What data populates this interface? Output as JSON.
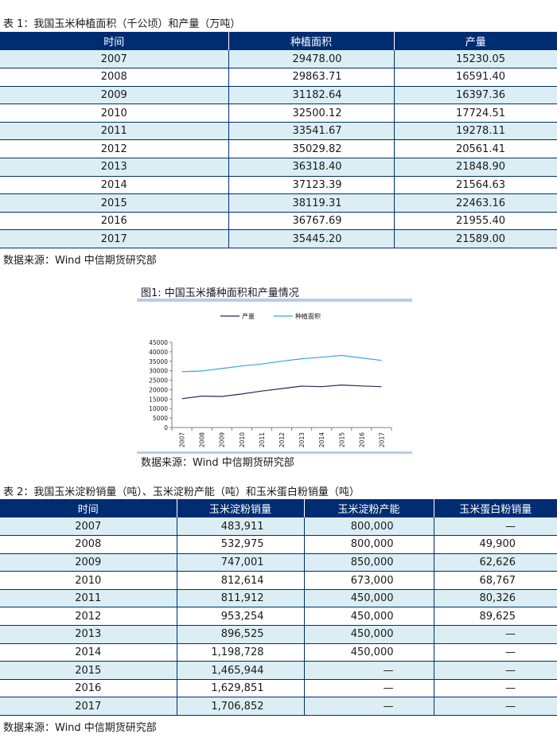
{
  "table1": {
    "caption": "表 1：我国玉米种植面积（千公顷）和产量（万吨）",
    "headers": [
      "时间",
      "种植面积",
      "产量"
    ],
    "rows": [
      [
        "2007",
        "29478.00",
        "15230.05"
      ],
      [
        "2008",
        "29863.71",
        "16591.40"
      ],
      [
        "2009",
        "31182.64",
        "16397.36"
      ],
      [
        "2010",
        "32500.12",
        "17724.51"
      ],
      [
        "2011",
        "33541.67",
        "19278.11"
      ],
      [
        "2012",
        "35029.82",
        "20561.41"
      ],
      [
        "2013",
        "36318.40",
        "21848.90"
      ],
      [
        "2014",
        "37123.39",
        "21564.63"
      ],
      [
        "2015",
        "38119.31",
        "22463.16"
      ],
      [
        "2016",
        "36767.69",
        "21955.40"
      ],
      [
        "2017",
        "35445.20",
        "21589.00"
      ]
    ],
    "source": "数据来源：Wind 中信期货研究部"
  },
  "chart_title": "图1: 中国玉米播种面积和产量情况",
  "chart_source": "数据来源：Wind 中信期货研究部",
  "chart_data": {
    "type": "line",
    "categories": [
      "2007",
      "2008",
      "2009",
      "2010",
      "2011",
      "2012",
      "2013",
      "2014",
      "2015",
      "2016",
      "2017"
    ],
    "series": [
      {
        "name": "产量",
        "color": "#1f2d5c",
        "values": [
          15230.05,
          16591.4,
          16397.36,
          17724.51,
          19278.11,
          20561.41,
          21848.9,
          21564.63,
          22463.16,
          21955.4,
          21589.0
        ]
      },
      {
        "name": "种植面积",
        "color": "#3aa6dd",
        "values": [
          29478.0,
          29863.71,
          31182.64,
          32500.12,
          33541.67,
          35029.82,
          36318.4,
          37123.39,
          38119.31,
          36767.69,
          35445.2
        ]
      }
    ],
    "yticks": [
      "45000",
      "40000",
      "35000",
      "30000",
      "25000",
      "20000",
      "15000",
      "10000",
      "5000",
      "0"
    ],
    "ylim": [
      0,
      45000
    ],
    "grid": false,
    "legend_position": "top"
  },
  "table2": {
    "caption": "表 2：我国玉米淀粉销量（吨）、玉米淀粉产能（吨）和玉米蛋白粉销量（吨）",
    "headers": [
      "时间",
      "玉米淀粉销量",
      "玉米淀粉产能",
      "玉米蛋白粉销量"
    ],
    "rows": [
      [
        "2007",
        "483,911",
        "800,000",
        "—"
      ],
      [
        "2008",
        "532,975",
        "800,000",
        "49,900"
      ],
      [
        "2009",
        "747,001",
        "850,000",
        "62,626"
      ],
      [
        "2010",
        "812,614",
        "673,000",
        "68,767"
      ],
      [
        "2011",
        "811,912",
        "450,000",
        "80,326"
      ],
      [
        "2012",
        "953,254",
        "450,000",
        "89,625"
      ],
      [
        "2013",
        "896,525",
        "450,000",
        "—"
      ],
      [
        "2014",
        "1,198,728",
        "450,000",
        "—"
      ],
      [
        "2015",
        "1,465,944",
        "—",
        "—"
      ],
      [
        "2016",
        "1,629,851",
        "—",
        "—"
      ],
      [
        "2017",
        "1,706,852",
        "—",
        "—"
      ]
    ],
    "source": "数据来源：Wind 中信期货研究部"
  }
}
